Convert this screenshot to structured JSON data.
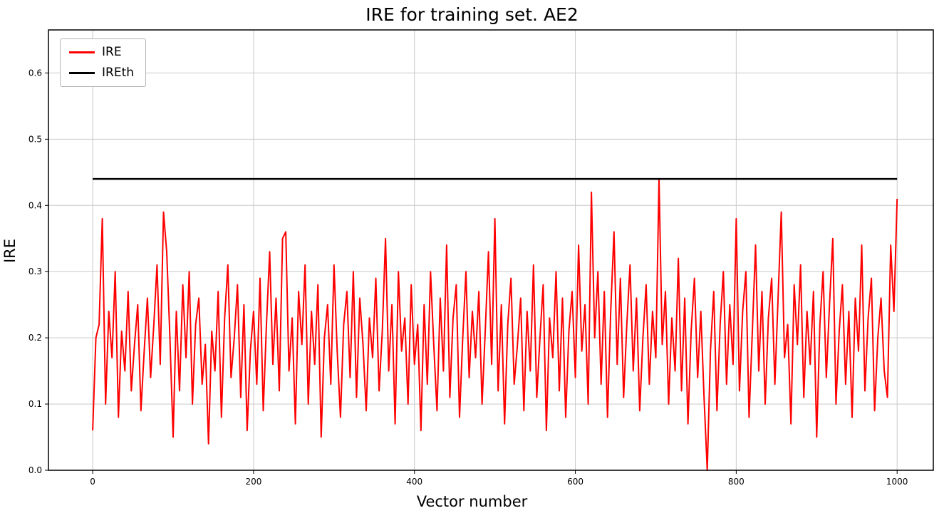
{
  "figure": {
    "title": "IRE for training set. AE2",
    "xlabel": "Vector number",
    "ylabel": "IRE"
  },
  "legend": {
    "entries": [
      {
        "label": "IRE",
        "color": "#ff0000"
      },
      {
        "label": "IREth",
        "color": "#000000"
      }
    ]
  },
  "chart_data": {
    "type": "line",
    "title": "IRE for training set. AE2",
    "xlabel": "Vector number",
    "ylabel": "IRE",
    "xlim": [
      -55,
      1045
    ],
    "ylim": [
      0,
      0.665
    ],
    "xticks": [
      0,
      200,
      400,
      600,
      800,
      1000
    ],
    "yticks": [
      0.0,
      0.1,
      0.2,
      0.3,
      0.4,
      0.5,
      0.6
    ],
    "grid": true,
    "legend_position": "upper left",
    "series": [
      {
        "name": "IRE",
        "color": "#ff0000",
        "x_start": 0,
        "x_step": 4,
        "values": [
          0.06,
          0.2,
          0.22,
          0.38,
          0.1,
          0.24,
          0.17,
          0.3,
          0.08,
          0.21,
          0.15,
          0.27,
          0.12,
          0.19,
          0.25,
          0.09,
          0.18,
          0.26,
          0.14,
          0.22,
          0.31,
          0.16,
          0.39,
          0.33,
          0.2,
          0.05,
          0.24,
          0.12,
          0.28,
          0.17,
          0.3,
          0.1,
          0.22,
          0.26,
          0.13,
          0.19,
          0.04,
          0.21,
          0.15,
          0.27,
          0.08,
          0.23,
          0.31,
          0.14,
          0.2,
          0.28,
          0.11,
          0.25,
          0.06,
          0.18,
          0.24,
          0.13,
          0.29,
          0.09,
          0.22,
          0.33,
          0.16,
          0.26,
          0.12,
          0.35,
          0.36,
          0.15,
          0.23,
          0.07,
          0.27,
          0.19,
          0.31,
          0.1,
          0.24,
          0.16,
          0.28,
          0.05,
          0.2,
          0.25,
          0.13,
          0.31,
          0.18,
          0.08,
          0.22,
          0.27,
          0.14,
          0.3,
          0.11,
          0.26,
          0.19,
          0.09,
          0.23,
          0.17,
          0.29,
          0.12,
          0.21,
          0.35,
          0.15,
          0.25,
          0.07,
          0.3,
          0.18,
          0.23,
          0.1,
          0.28,
          0.16,
          0.22,
          0.06,
          0.25,
          0.13,
          0.3,
          0.19,
          0.09,
          0.26,
          0.15,
          0.34,
          0.11,
          0.23,
          0.28,
          0.08,
          0.2,
          0.3,
          0.14,
          0.24,
          0.17,
          0.27,
          0.1,
          0.21,
          0.33,
          0.16,
          0.38,
          0.12,
          0.25,
          0.07,
          0.22,
          0.29,
          0.13,
          0.19,
          0.26,
          0.09,
          0.24,
          0.15,
          0.31,
          0.11,
          0.2,
          0.28,
          0.06,
          0.23,
          0.17,
          0.3,
          0.12,
          0.26,
          0.08,
          0.21,
          0.27,
          0.14,
          0.34,
          0.18,
          0.25,
          0.1,
          0.42,
          0.2,
          0.3,
          0.13,
          0.27,
          0.08,
          0.24,
          0.36,
          0.16,
          0.29,
          0.11,
          0.22,
          0.31,
          0.15,
          0.26,
          0.09,
          0.2,
          0.28,
          0.13,
          0.24,
          0.17,
          0.44,
          0.19,
          0.27,
          0.1,
          0.23,
          0.15,
          0.32,
          0.12,
          0.26,
          0.07,
          0.21,
          0.29,
          0.14,
          0.24,
          0.11,
          0.0,
          0.18,
          0.27,
          0.09,
          0.22,
          0.3,
          0.13,
          0.25,
          0.16,
          0.38,
          0.12,
          0.24,
          0.3,
          0.08,
          0.21,
          0.34,
          0.15,
          0.27,
          0.1,
          0.23,
          0.29,
          0.13,
          0.26,
          0.39,
          0.17,
          0.22,
          0.07,
          0.28,
          0.19,
          0.31,
          0.11,
          0.24,
          0.16,
          0.27,
          0.05,
          0.22,
          0.3,
          0.14,
          0.25,
          0.35,
          0.1,
          0.21,
          0.28,
          0.13,
          0.24,
          0.08,
          0.26,
          0.18,
          0.34,
          0.12,
          0.23,
          0.29,
          0.09,
          0.2,
          0.26,
          0.15,
          0.11,
          0.34,
          0.24,
          0.41
        ]
      },
      {
        "name": "IREth",
        "color": "#000000",
        "type": "hline",
        "y": 0.44,
        "x_range": [
          0,
          1000
        ]
      }
    ]
  }
}
